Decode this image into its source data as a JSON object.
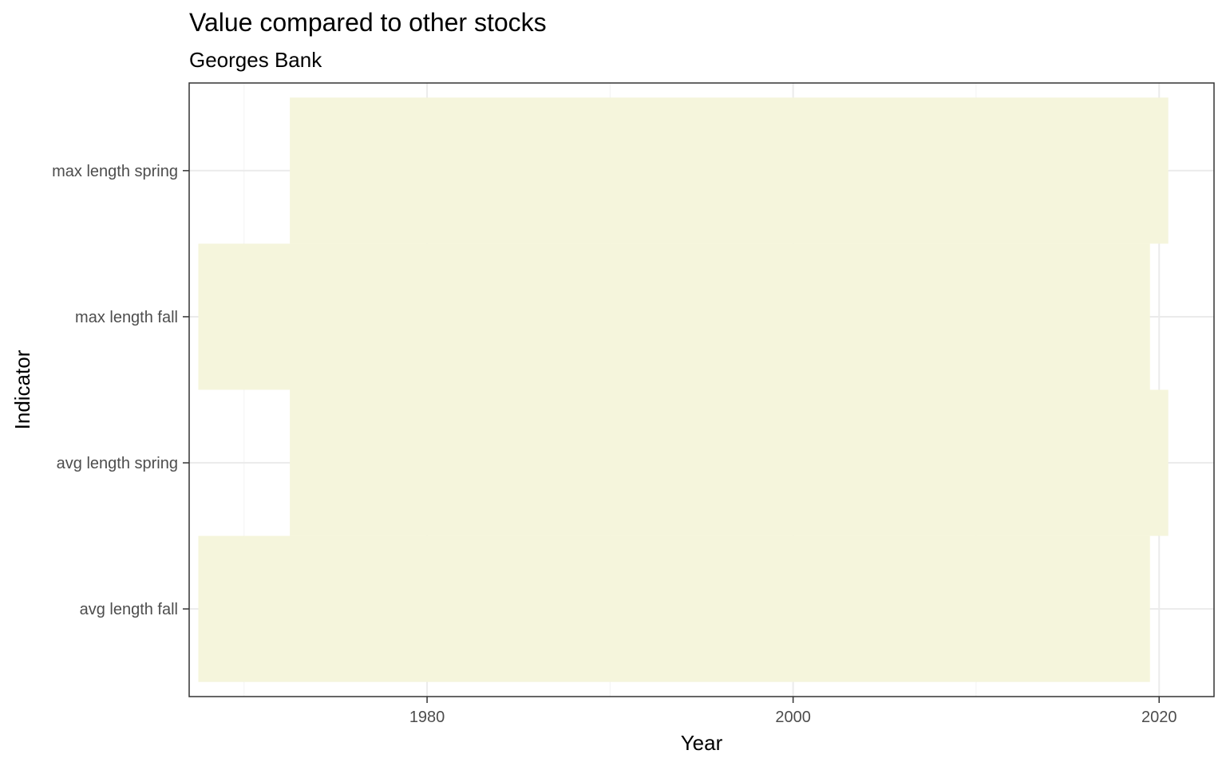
{
  "chart_data": {
    "type": "bar",
    "orientation": "horizontal-ranges",
    "title": "Value compared to other stocks",
    "subtitle": "Georges Bank",
    "xlabel": "Year",
    "ylabel": "Indicator",
    "xlim": [
      1967,
      2023
    ],
    "x_ticks": [
      "1980",
      "2000",
      "2020"
    ],
    "categories": [
      "avg length fall",
      "avg length spring",
      "max length fall",
      "max length spring"
    ],
    "ranges": [
      {
        "indicator": "avg length fall",
        "start": 1967.5,
        "end": 2019.5
      },
      {
        "indicator": "avg length spring",
        "start": 1972.5,
        "end": 2020.5
      },
      {
        "indicator": "max length fall",
        "start": 1967.5,
        "end": 2019.5
      },
      {
        "indicator": "max length spring",
        "start": 1972.5,
        "end": 2020.5
      }
    ],
    "fill_color": "#f5f5dc",
    "grid": true,
    "legend": "none"
  }
}
